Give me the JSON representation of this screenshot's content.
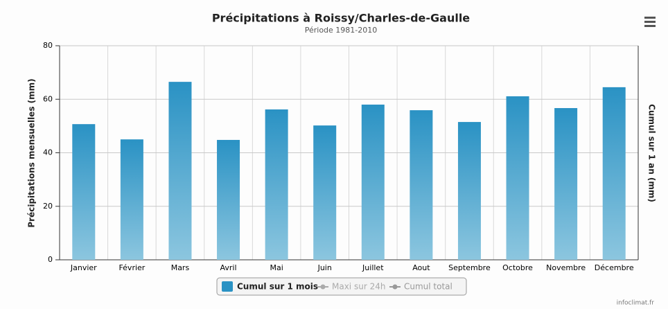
{
  "chart_data": {
    "type": "bar",
    "title": "Précipitations à Roissy/Charles-de-Gaulle",
    "subtitle": "Période 1981-2010",
    "y_label": "Précipitations mensuelles (mm)",
    "y2_label": "Cumul sur 1 an (mm)",
    "categories": [
      "Janvier",
      "Février",
      "Mars",
      "Avril",
      "Mai",
      "Juin",
      "Juillet",
      "Aout",
      "Septembre",
      "Octobre",
      "Novembre",
      "Décembre"
    ],
    "series": [
      {
        "name": "Cumul sur 1 mois",
        "color": "#2a92c4",
        "values": [
          50.7,
          45.0,
          66.5,
          44.8,
          56.2,
          50.2,
          58.0,
          55.9,
          51.5,
          61.1,
          56.7,
          64.5
        ]
      }
    ],
    "hidden_series": [
      {
        "name": "Maxi sur 24h",
        "color": "#aaaaaa"
      },
      {
        "name": "Cumul total",
        "color": "#999999"
      }
    ],
    "ylim": [
      0,
      80
    ],
    "yticks": [
      0,
      20,
      40,
      60,
      80
    ],
    "grid": true,
    "credit": "infoclimat.fr"
  }
}
